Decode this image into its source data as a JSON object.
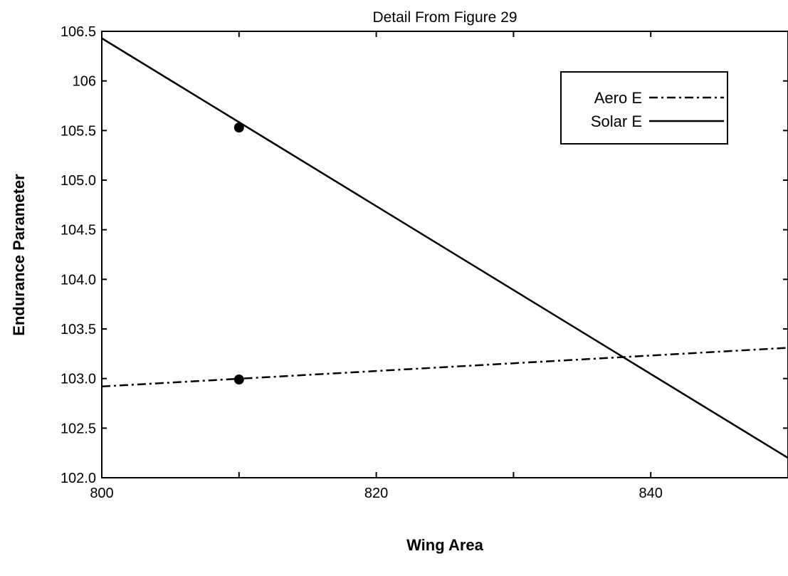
{
  "chart_data": {
    "type": "line",
    "title": "Detail From Figure 29",
    "xlabel": "Wing Area",
    "ylabel": "Endurance Parameter",
    "xlim": [
      800,
      850
    ],
    "ylim": [
      102.0,
      106.5
    ],
    "x_ticks": [
      "800",
      "820",
      "840"
    ],
    "x_tick_values": [
      800,
      820,
      840
    ],
    "x_minor_tick_values": [
      810,
      830
    ],
    "y_ticks": [
      "102.0",
      "102.5",
      "103.0",
      "103.5",
      "104.0",
      "104.5",
      "105.0",
      "105.5",
      "106",
      "106.5"
    ],
    "y_tick_values": [
      102.0,
      102.5,
      103.0,
      103.5,
      104.0,
      104.5,
      105.0,
      105.5,
      106.0,
      106.5
    ],
    "grid": false,
    "legend_position": "top-right",
    "series": [
      {
        "name": "Aero E",
        "line_style": "dash-dot",
        "color": "#000000",
        "x": [
          800,
          850
        ],
        "y": [
          102.92,
          103.31
        ]
      },
      {
        "name": "Solar E",
        "line_style": "solid",
        "color": "#000000",
        "x": [
          800,
          850
        ],
        "y": [
          106.43,
          102.2
        ]
      }
    ],
    "markers": [
      {
        "series": "Solar E",
        "x": 810,
        "y": 105.53
      },
      {
        "series": "Aero E",
        "x": 810,
        "y": 102.99
      }
    ]
  }
}
